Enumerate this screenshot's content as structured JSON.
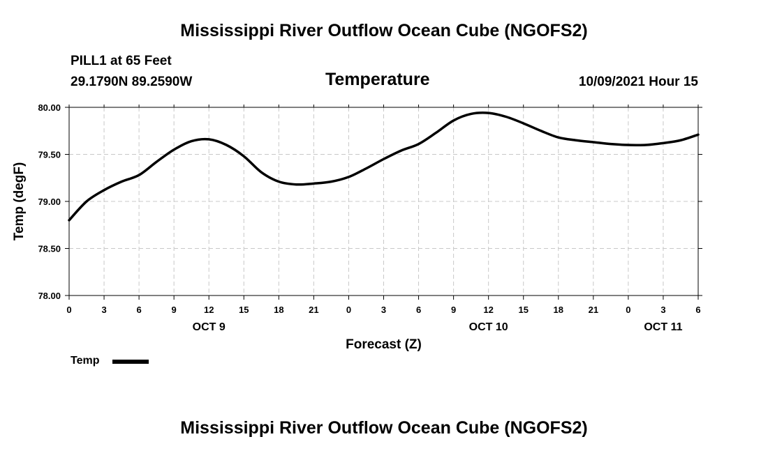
{
  "chart_data": {
    "type": "line",
    "title": "Mississippi River Outflow Ocean Cube (NGOFS2)",
    "footer_title": "Mississippi River Outflow Ocean Cube (NGOFS2)",
    "station_line": "PILL1 at 65 Feet",
    "coord_line": "29.1790N  89.2590W",
    "subtitle": "Temperature",
    "datetime": "10/09/2021 Hour 15",
    "xlabel": "Forecast (Z)",
    "ylabel": "Temp (degF)",
    "ylim": [
      78.0,
      80.0
    ],
    "yticks": [
      "78.00",
      "78.50",
      "79.00",
      "79.50",
      "80.00"
    ],
    "xlim": [
      0,
      54
    ],
    "xtick_labels": [
      "0",
      "3",
      "6",
      "9",
      "12",
      "15",
      "18",
      "21",
      "0",
      "3",
      "6",
      "9",
      "12",
      "15",
      "18",
      "21",
      "0",
      "3",
      "6"
    ],
    "day_labels": [
      {
        "label": "OCT 9",
        "hour": 12
      },
      {
        "label": "OCT 10",
        "hour": 36
      },
      {
        "label": "OCT 11",
        "hour": 51
      }
    ],
    "grid": true,
    "legend": "bottom-left",
    "series": [
      {
        "name": "Temp",
        "x": [
          0,
          1.5,
          3,
          4.5,
          6,
          7.5,
          9,
          10.5,
          12,
          13.5,
          15,
          16.5,
          18,
          19.5,
          21,
          22.5,
          24,
          25.5,
          27,
          28.5,
          30,
          31.5,
          33,
          34.5,
          36,
          37.5,
          39,
          40.5,
          42,
          43.5,
          45,
          46.5,
          48,
          49.5,
          51,
          52.5,
          54
        ],
        "values": [
          78.8,
          79.0,
          79.12,
          79.21,
          79.28,
          79.42,
          79.55,
          79.64,
          79.66,
          79.6,
          79.48,
          79.31,
          79.21,
          79.18,
          79.19,
          79.21,
          79.26,
          79.35,
          79.45,
          79.54,
          79.61,
          79.73,
          79.86,
          79.93,
          79.94,
          79.9,
          79.83,
          79.75,
          79.68,
          79.65,
          79.63,
          79.61,
          79.6,
          79.6,
          79.62,
          79.65,
          79.71
        ]
      }
    ]
  }
}
